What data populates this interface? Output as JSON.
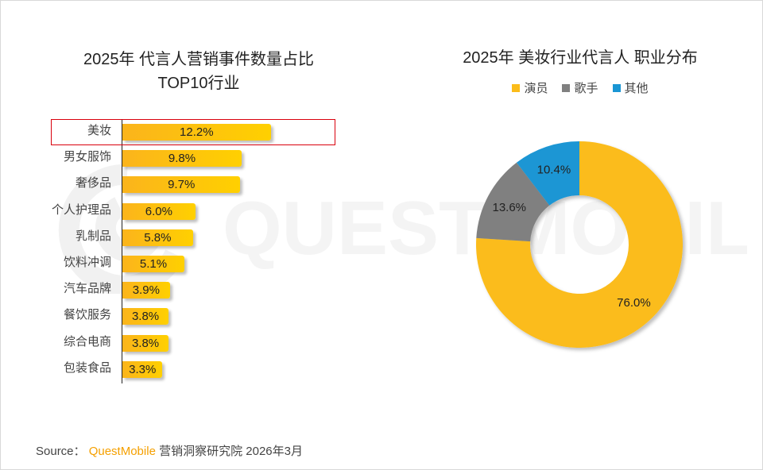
{
  "left_chart": {
    "title_line1": "2025年 代言人营销事件数量占比",
    "title_line2": "TOP10行业",
    "highlight": "美妆"
  },
  "right_chart": {
    "title": "2025年 美妆行业代言人 职业分布",
    "legend": [
      {
        "label": "演员",
        "color": "#fbbc1a"
      },
      {
        "label": "歌手",
        "color": "#808080"
      },
      {
        "label": "其他",
        "color": "#1a96d4"
      }
    ]
  },
  "source": {
    "prefix": "Source：",
    "brand": "QuestMobile",
    "suffix": "营销洞察研究院 2026年3月"
  },
  "watermark": "QUEST MOBILE",
  "chart_data": [
    {
      "type": "bar",
      "orientation": "horizontal",
      "title": "2025年 代言人营销事件数量占比 TOP10行业",
      "categories": [
        "美妆",
        "男女服饰",
        "奢侈品",
        "个人护理品",
        "乳制品",
        "饮料冲调",
        "汽车品牌",
        "餐饮服务",
        "综合电商",
        "包装食品"
      ],
      "values": [
        12.2,
        9.8,
        9.7,
        6.0,
        5.8,
        5.1,
        3.9,
        3.8,
        3.8,
        3.3
      ],
      "labels": [
        "12.2%",
        "9.8%",
        "9.7%",
        "6.0%",
        "5.8%",
        "5.1%",
        "3.9%",
        "3.8%",
        "3.8%",
        "3.3%"
      ],
      "unit": "%",
      "xlabel": "",
      "ylabel": "",
      "grid": false,
      "highlighted_category": "美妆"
    },
    {
      "type": "pie",
      "donut": true,
      "title": "2025年 美妆行业代言人 职业分布",
      "categories": [
        "演员",
        "歌手",
        "其他"
      ],
      "values": [
        76.0,
        13.6,
        10.4
      ],
      "labels": [
        "76.0%",
        "13.6%",
        "10.4%"
      ],
      "colors": [
        "#fbbc1a",
        "#808080",
        "#1a96d4"
      ],
      "legend_position": "top"
    }
  ]
}
